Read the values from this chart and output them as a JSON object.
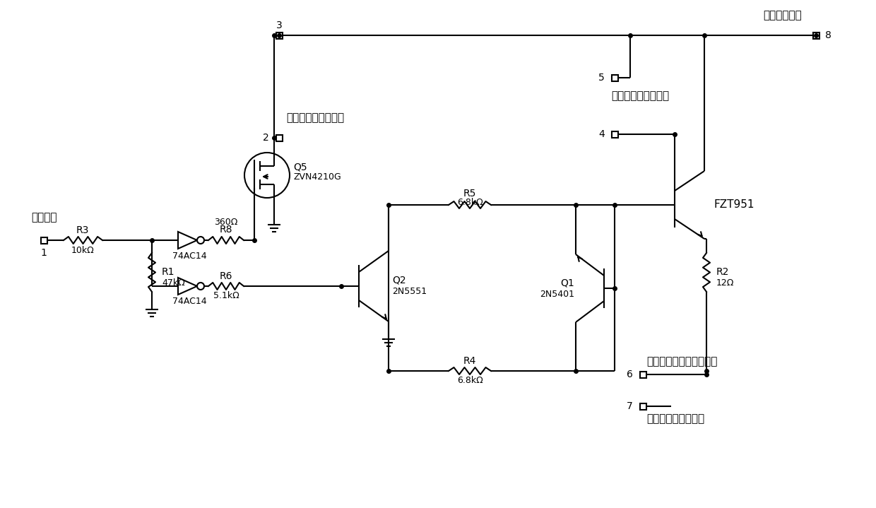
{
  "bg_color": "#ffffff",
  "line_color": "#000000",
  "line_width": 1.5,
  "labels": {
    "logic_level": "逻辑电平",
    "conn1": "1",
    "conn2": "2",
    "conn3": "3",
    "conn4": "4",
    "conn5": "5",
    "conn6": "6",
    "conn7": "7",
    "conn8": "8",
    "low_jumper": "低电平输出选择跳线",
    "high_jumper": "高电平输出选择跳线",
    "high_threshold": "高电平输出阈值选择跳线",
    "high_ref": "高电平输出参考电平",
    "signal_out": "调理信号输出",
    "R1": "R1",
    "R1v": "47kΩ",
    "R2": "R2",
    "R2v": "12Ω",
    "R3": "R3",
    "R3v": "10kΩ",
    "R4": "R4",
    "R4v": "6.8kΩ",
    "R5": "R5",
    "R5v": "6.8kΩ",
    "R6": "R6",
    "R6v": "5.1kΩ",
    "R8": "R8",
    "R8v": "360Ω",
    "Q1": "Q1",
    "Q1v": "2N5401",
    "Q2": "Q2",
    "Q2v": "2N5551",
    "Q5": "Q5",
    "Q5v": "ZVN4210G",
    "FZT": "FZT951",
    "IC1": "74AC14",
    "IC2": "74AC14"
  }
}
